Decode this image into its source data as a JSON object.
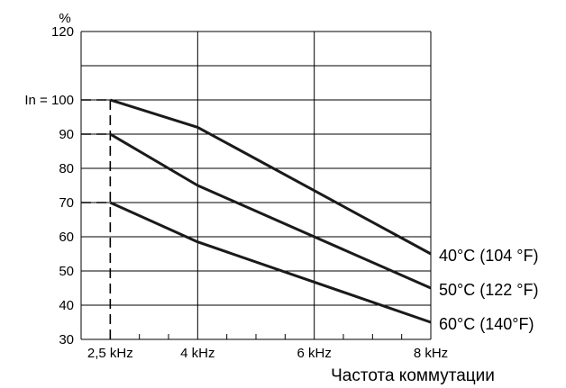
{
  "chart_data": {
    "type": "line",
    "y_unit_label": "%",
    "xlabel": "Частота коммутации",
    "ylabel": "",
    "xlim": [
      2,
      8
    ],
    "ylim": [
      30,
      120
    ],
    "grid": true,
    "x_ticks": [
      {
        "value": 2.5,
        "label": "2,5 kHz"
      },
      {
        "value": 4,
        "label": "4 kHz"
      },
      {
        "value": 6,
        "label": "6 kHz"
      },
      {
        "value": 8,
        "label": "8 kHz"
      }
    ],
    "y_ticks": [
      {
        "value": 30,
        "label": "30"
      },
      {
        "value": 40,
        "label": "40"
      },
      {
        "value": 50,
        "label": "50"
      },
      {
        "value": 60,
        "label": "60"
      },
      {
        "value": 70,
        "label": "70"
      },
      {
        "value": 80,
        "label": "80"
      },
      {
        "value": 90,
        "label": "90"
      },
      {
        "value": 100,
        "label": "In = 100"
      },
      {
        "value": 120,
        "label": "120"
      }
    ],
    "reference_lines": [
      {
        "axis": "x",
        "value": 2.5,
        "from": 30,
        "to": 100
      },
      {
        "axis": "y",
        "value": 100,
        "from": 2,
        "to": 2.5
      },
      {
        "axis": "y",
        "value": 90,
        "from": 2,
        "to": 2.5
      },
      {
        "axis": "y",
        "value": 70,
        "from": 2,
        "to": 2.5
      }
    ],
    "series": [
      {
        "name": "40°C (104 °F)",
        "x": [
          2.5,
          4,
          8
        ],
        "y": [
          100,
          92,
          55
        ]
      },
      {
        "name": "50°C (122 °F)",
        "x": [
          2.5,
          4,
          8
        ],
        "y": [
          90,
          75,
          45
        ]
      },
      {
        "name": "60°C (140°F)",
        "x": [
          2.5,
          4,
          8
        ],
        "y": [
          70,
          58.5,
          35
        ]
      }
    ],
    "colors": {
      "line": "#1a1a1a",
      "grid": "#000000"
    }
  }
}
